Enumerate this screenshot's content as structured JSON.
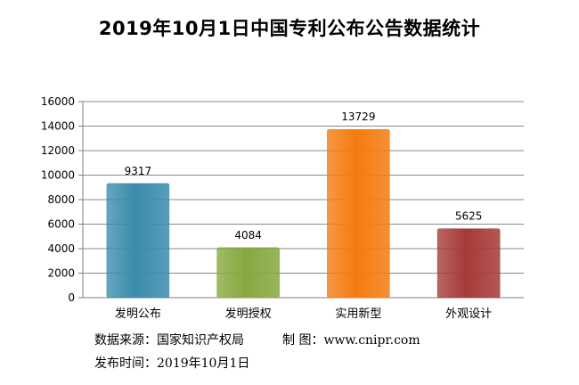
{
  "chart_data": {
    "type": "bar",
    "title": "2019年10月1日中国专利公布公告数据统计",
    "categories": [
      "发明公布",
      "发明授权",
      "实用新型",
      "外观设计"
    ],
    "values": [
      9317,
      4084,
      13729,
      5625
    ],
    "data_labels": [
      "9317",
      "4084",
      "13729",
      "5625"
    ],
    "colors": [
      "#3a8cab",
      "#86a83f",
      "#f57b10",
      "#a53a38"
    ],
    "ylim": [
      0,
      16000
    ],
    "yticks": [
      0,
      2000,
      4000,
      6000,
      8000,
      10000,
      12000,
      14000,
      16000
    ],
    "ytick_labels": [
      "0",
      "2000",
      "4000",
      "6000",
      "8000",
      "10000",
      "12000",
      "14000",
      "16000"
    ],
    "grid": true,
    "xlabel": "",
    "ylabel": ""
  },
  "footer": {
    "source": "数据来源：国家知识产权局",
    "maker": "制  图：www.cnipr.com",
    "date": "发布时间：2019年10月1日"
  }
}
